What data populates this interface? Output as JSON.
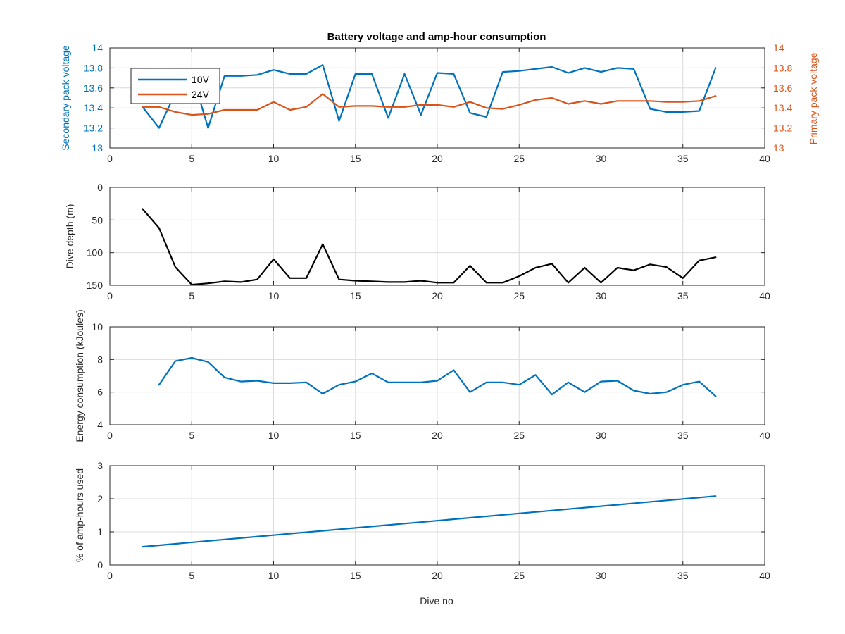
{
  "figure": {
    "title": "Battery voltage and amp-hour consumption",
    "xlabel": "Dive no",
    "colors": {
      "blue": "#0072BD",
      "orange": "#D95319",
      "black": "#000000",
      "grid": "#dcdcdc",
      "axis": "#262626"
    }
  },
  "chart_data": [
    {
      "type": "line",
      "title": "Battery voltage and amp-hour consumption",
      "xlabel": "",
      "ylabel": "Secondary pack voltage",
      "ylabel_right": "Primary pack voltage",
      "xlim": [
        0,
        40
      ],
      "ylim": [
        13,
        14
      ],
      "ylim_right": [
        13,
        14
      ],
      "x_ticks": [
        0,
        5,
        10,
        15,
        20,
        25,
        30,
        35,
        40
      ],
      "x_tick_labels": [
        "0",
        "5",
        "10",
        "15",
        "20",
        "25",
        "30",
        "35",
        "40"
      ],
      "y_ticks": [
        13,
        13.2,
        13.4,
        13.6,
        13.8,
        14
      ],
      "y_tick_labels": [
        "13",
        "13.2",
        "13.4",
        "13.6",
        "13.8",
        "14"
      ],
      "y_ticks_right": [
        13,
        13.2,
        13.4,
        13.6,
        13.8,
        14
      ],
      "y_tick_labels_right": [
        "13",
        "13.2",
        "13.4",
        "13.6",
        "13.8",
        "14"
      ],
      "grid": true,
      "legend_position": "top-left",
      "series": [
        {
          "name": "10V",
          "axis": "left",
          "color": "#0072BD",
          "x": [
            2,
            3,
            4,
            5,
            6,
            7,
            8,
            9,
            10,
            11,
            12,
            13,
            14,
            15,
            16,
            17,
            18,
            19,
            20,
            21,
            22,
            23,
            24,
            25,
            26,
            27,
            28,
            29,
            30,
            31,
            32,
            33,
            34,
            35,
            36,
            37
          ],
          "y": [
            13.41,
            13.2,
            13.55,
            13.75,
            13.2,
            13.72,
            13.72,
            13.73,
            13.78,
            13.74,
            13.74,
            13.83,
            13.27,
            13.74,
            13.74,
            13.3,
            13.74,
            13.33,
            13.75,
            13.74,
            13.35,
            13.31,
            13.76,
            13.77,
            13.79,
            13.81,
            13.75,
            13.8,
            13.76,
            13.8,
            13.79,
            13.39,
            13.36,
            13.36,
            13.37,
            13.8
          ]
        },
        {
          "name": "24V",
          "axis": "right",
          "color": "#D95319",
          "x": [
            2,
            3,
            4,
            5,
            6,
            7,
            8,
            9,
            10,
            11,
            12,
            13,
            14,
            15,
            16,
            17,
            18,
            19,
            20,
            21,
            22,
            23,
            24,
            25,
            26,
            27,
            28,
            29,
            30,
            31,
            32,
            33,
            34,
            35,
            36,
            37
          ],
          "y": [
            13.41,
            13.41,
            13.36,
            13.33,
            13.34,
            13.38,
            13.38,
            13.38,
            13.46,
            13.38,
            13.41,
            13.54,
            13.41,
            13.42,
            13.42,
            13.41,
            13.41,
            13.43,
            13.43,
            13.41,
            13.46,
            13.4,
            13.39,
            13.43,
            13.48,
            13.5,
            13.44,
            13.47,
            13.44,
            13.47,
            13.47,
            13.47,
            13.46,
            13.46,
            13.47,
            13.52
          ]
        }
      ]
    },
    {
      "type": "line",
      "xlabel": "",
      "ylabel": "Dive depth (m)",
      "xlim": [
        0,
        40
      ],
      "ylim": [
        0,
        150
      ],
      "y_reversed": true,
      "x_ticks": [
        0,
        5,
        10,
        15,
        20,
        25,
        30,
        35,
        40
      ],
      "x_tick_labels": [
        "0",
        "5",
        "10",
        "15",
        "20",
        "25",
        "30",
        "35",
        "40"
      ],
      "y_ticks": [
        0,
        50,
        100,
        150
      ],
      "y_tick_labels": [
        "0",
        "50",
        "100",
        "150"
      ],
      "grid": true,
      "series": [
        {
          "color": "#000000",
          "x": [
            2,
            3,
            4,
            5,
            6,
            7,
            8,
            9,
            10,
            11,
            12,
            13,
            14,
            15,
            16,
            17,
            18,
            19,
            20,
            21,
            22,
            23,
            24,
            25,
            26,
            27,
            28,
            29,
            30,
            31,
            32,
            33,
            34,
            35,
            36,
            37
          ],
          "y": [
            33,
            62,
            122,
            149,
            147,
            144,
            145,
            141,
            110,
            139,
            139,
            87,
            141,
            143,
            144,
            145,
            145,
            143,
            146,
            146,
            120,
            146,
            146,
            136,
            123,
            117,
            146,
            123,
            146,
            123,
            127,
            118,
            122,
            139,
            112,
            107
          ]
        }
      ]
    },
    {
      "type": "line",
      "xlabel": "",
      "ylabel": "Energy consumption (kJoules)",
      "xlim": [
        0,
        40
      ],
      "ylim": [
        4,
        10
      ],
      "x_ticks": [
        0,
        5,
        10,
        15,
        20,
        25,
        30,
        35,
        40
      ],
      "x_tick_labels": [
        "0",
        "5",
        "10",
        "15",
        "20",
        "25",
        "30",
        "35",
        "40"
      ],
      "y_ticks": [
        4,
        6,
        8,
        10
      ],
      "y_tick_labels": [
        "4",
        "6",
        "8",
        "10"
      ],
      "grid": true,
      "series": [
        {
          "color": "#0072BD",
          "x": [
            3,
            4,
            5,
            6,
            7,
            8,
            9,
            10,
            11,
            12,
            13,
            14,
            15,
            16,
            17,
            18,
            19,
            20,
            21,
            22,
            23,
            24,
            25,
            26,
            27,
            28,
            29,
            30,
            31,
            32,
            33,
            34,
            35,
            36,
            37
          ],
          "y": [
            6.45,
            7.9,
            8.1,
            7.85,
            6.9,
            6.65,
            6.7,
            6.55,
            6.55,
            6.6,
            5.9,
            6.45,
            6.65,
            7.15,
            6.6,
            6.6,
            6.6,
            6.7,
            7.35,
            6.0,
            6.6,
            6.6,
            6.45,
            7.05,
            5.85,
            6.6,
            6.0,
            6.65,
            6.7,
            6.1,
            5.9,
            6.0,
            6.45,
            6.65,
            5.75
          ]
        }
      ]
    },
    {
      "type": "line",
      "xlabel": "Dive no",
      "ylabel": "% of amp-hours used",
      "xlim": [
        0,
        40
      ],
      "ylim": [
        0,
        3
      ],
      "x_ticks": [
        0,
        5,
        10,
        15,
        20,
        25,
        30,
        35,
        40
      ],
      "x_tick_labels": [
        "0",
        "5",
        "10",
        "15",
        "20",
        "25",
        "30",
        "35",
        "40"
      ],
      "y_ticks": [
        0,
        1,
        2,
        3
      ],
      "y_tick_labels": [
        "0",
        "1",
        "2",
        "3"
      ],
      "grid": true,
      "series": [
        {
          "color": "#0072BD",
          "x": [
            2,
            37
          ],
          "y": [
            0.55,
            2.08
          ]
        }
      ]
    }
  ]
}
